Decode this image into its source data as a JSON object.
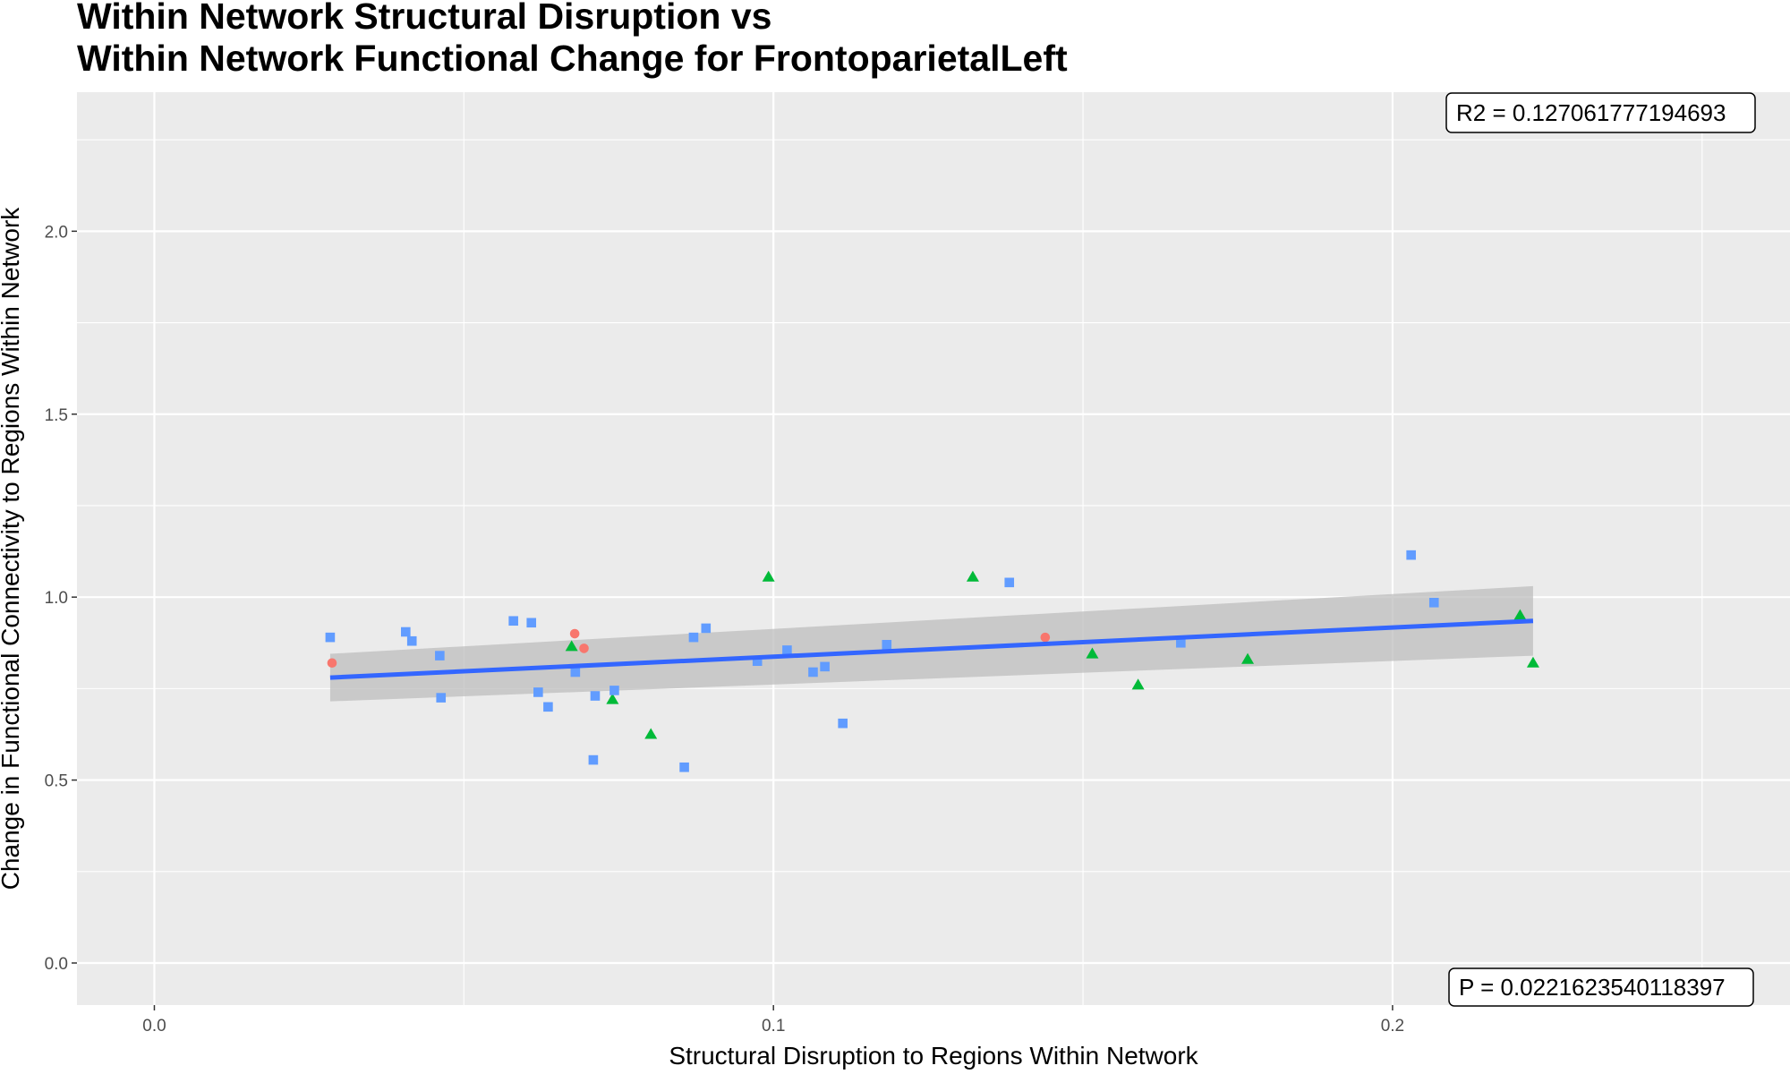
{
  "chart_data": {
    "type": "scatter",
    "title_lines": [
      "Within Network Structural Disruption vs",
      "Within Network Functional Change for FrontoparietalLeft"
    ],
    "xlabel": "Structural Disruption to Regions Within Network",
    "ylabel": "Change in Functional Connectivity to Regions Within Network",
    "xlim": [
      -0.0125,
      0.2642
    ],
    "ylim": [
      -0.115,
      2.38
    ],
    "x_ticks": [
      0.0,
      0.1,
      0.2
    ],
    "x_tick_labels": [
      "0.0",
      "0.1",
      "0.2"
    ],
    "y_ticks": [
      0.0,
      0.5,
      1.0,
      1.5,
      2.0
    ],
    "y_tick_labels": [
      "0.0",
      "0.5",
      "1.0",
      "1.5",
      "2.0"
    ],
    "grid": true,
    "annotations": {
      "r2_label": "R2 =  0.127061777194693",
      "p_label": "P =  0.0221623540118397"
    },
    "series": [
      {
        "marker": "circle",
        "color": "#F8766D",
        "points": [
          [
            0.0287,
            0.82
          ],
          [
            0.0679,
            0.9
          ],
          [
            0.0694,
            0.86
          ],
          [
            0.1439,
            0.89
          ]
        ]
      },
      {
        "marker": "triangle",
        "color": "#00BA38",
        "points": [
          [
            0.0674,
            0.865
          ],
          [
            0.074,
            0.72
          ],
          [
            0.0802,
            0.625
          ],
          [
            0.0992,
            1.055
          ],
          [
            0.1322,
            1.055
          ],
          [
            0.1515,
            0.845
          ],
          [
            0.1589,
            0.76
          ],
          [
            0.1766,
            0.83
          ],
          [
            0.2206,
            0.95
          ],
          [
            0.2227,
            0.82
          ]
        ]
      },
      {
        "marker": "square",
        "color": "#619CFF",
        "points": [
          [
            0.0284,
            0.89
          ],
          [
            0.0406,
            0.905
          ],
          [
            0.0416,
            0.88
          ],
          [
            0.0463,
            0.725
          ],
          [
            0.0461,
            0.84
          ],
          [
            0.058,
            0.935
          ],
          [
            0.0609,
            0.93
          ],
          [
            0.062,
            0.74
          ],
          [
            0.0636,
            0.7
          ],
          [
            0.068,
            0.795
          ],
          [
            0.0712,
            0.73
          ],
          [
            0.0743,
            0.745
          ],
          [
            0.0709,
            0.555
          ],
          [
            0.0856,
            0.535
          ],
          [
            0.0871,
            0.89
          ],
          [
            0.0891,
            0.915
          ],
          [
            0.0974,
            0.825
          ],
          [
            0.1022,
            0.855
          ],
          [
            0.1064,
            0.795
          ],
          [
            0.1083,
            0.81
          ],
          [
            0.1112,
            0.655
          ],
          [
            0.1183,
            0.87
          ],
          [
            0.1381,
            1.04
          ],
          [
            0.1658,
            0.875
          ],
          [
            0.203,
            1.115
          ],
          [
            0.2067,
            0.985
          ]
        ]
      }
    ],
    "regression": {
      "x_range": [
        0.0284,
        0.2227
      ],
      "line_y": [
        0.78,
        0.935
      ],
      "ci_lower": [
        0.715,
        0.84
      ],
      "ci_upper": [
        0.845,
        1.03
      ],
      "line_color": "#3366FF",
      "band_color": "#bdbdbd"
    }
  }
}
